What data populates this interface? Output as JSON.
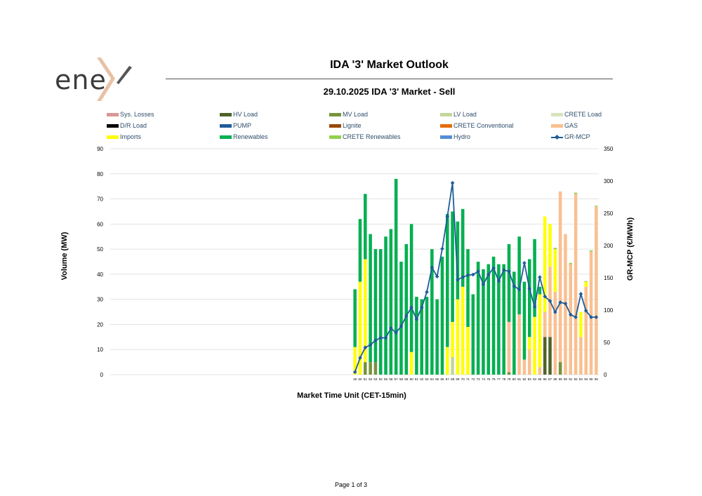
{
  "logo": {
    "text": "ene"
  },
  "title": "IDA '3' Market Outlook",
  "subtitle": "29.10.2025  IDA '3' Market - Sell",
  "page_footer": "Page 1 of 3",
  "legend": [
    {
      "label": "Sys. Losses",
      "color": "#d99694"
    },
    {
      "label": "HV Load",
      "color": "#4f6228"
    },
    {
      "label": "MV Load",
      "color": "#77933c"
    },
    {
      "label": "LV Load",
      "color": "#c3d69b"
    },
    {
      "label": "CRETE Load",
      "color": "#d7e4bd"
    },
    {
      "label": "D/R Load",
      "color": "#000000"
    },
    {
      "label": "PUMP",
      "color": "#1f5c99"
    },
    {
      "label": "Lignite",
      "color": "#984807"
    },
    {
      "label": "CRETE Conventional",
      "color": "#e46c0a"
    },
    {
      "label": "GAS",
      "color": "#fac090"
    },
    {
      "label": "Imports",
      "color": "#ffff00"
    },
    {
      "label": "Renewables",
      "color": "#00b050"
    },
    {
      "label": "CRETE Renewables",
      "color": "#92d050"
    },
    {
      "label": "Hydro",
      "color": "#558ed5"
    },
    {
      "label": "GR-MCP",
      "color": "#1f5c99"
    }
  ],
  "chart_data": {
    "type": "bar",
    "stacked": true,
    "xlabel": "Market Time Unit (CET-15min)",
    "ylabel": "Volume (MW)",
    "y2label": "GR-MCP (€/MWh)",
    "ylim": [
      0,
      90
    ],
    "y2lim": [
      0,
      350
    ],
    "yticks": [
      0,
      10,
      20,
      30,
      40,
      50,
      60,
      70,
      80,
      90
    ],
    "y2ticks": [
      0,
      50,
      100,
      150,
      200,
      250,
      300,
      350
    ],
    "categories": [
      "49",
      "50",
      "51",
      "52",
      "53",
      "54",
      "55",
      "56",
      "57",
      "58",
      "59",
      "60",
      "61",
      "62",
      "63",
      "64",
      "65",
      "66",
      "67",
      "68",
      "69",
      "70",
      "71",
      "72",
      "73",
      "74",
      "75",
      "76",
      "77",
      "78",
      "79",
      "80",
      "81",
      "82",
      "83",
      "84",
      "85",
      "86",
      "87",
      "88",
      "89",
      "90",
      "91",
      "92",
      "93",
      "94",
      "95",
      "96"
    ],
    "series": [
      {
        "name": "HV Load",
        "color": "#4f6228",
        "values": [
          0,
          0,
          0,
          0,
          0,
          0,
          0,
          0,
          0,
          0,
          0,
          0,
          0,
          0,
          0,
          0,
          0,
          0,
          0,
          0,
          0,
          0,
          0,
          0,
          0,
          0,
          0,
          0,
          0,
          0,
          0,
          0,
          0,
          0,
          0,
          0,
          0,
          15,
          15,
          0,
          0,
          0,
          0,
          0,
          0,
          0,
          0,
          0
        ]
      },
      {
        "name": "MV Load",
        "color": "#77933c",
        "values": [
          0,
          0,
          5,
          5,
          5,
          0,
          0,
          0,
          0,
          0,
          0,
          0,
          0,
          0,
          0,
          0,
          0,
          0,
          0,
          0,
          0,
          0,
          0,
          0,
          0,
          0,
          0,
          0,
          0,
          0,
          1,
          0,
          0,
          0,
          0,
          0,
          0,
          0,
          0,
          0,
          5,
          0,
          0,
          0,
          0,
          0,
          0,
          0
        ]
      },
      {
        "name": "LV Load",
        "color": "#c3d69b",
        "values": [
          0,
          0,
          0,
          0,
          0,
          0,
          0,
          0,
          0,
          0,
          0,
          0,
          0,
          0,
          0,
          0,
          0,
          0,
          0,
          7,
          0,
          0,
          0,
          0,
          0,
          0,
          0,
          0,
          0,
          0,
          0,
          0,
          0,
          0,
          0,
          0,
          0,
          0,
          0,
          0,
          0,
          0,
          0,
          0,
          0,
          0,
          0,
          0
        ]
      },
      {
        "name": "GAS",
        "color": "#fac090",
        "values": [
          0,
          0,
          0,
          0,
          0,
          0,
          0,
          0,
          0,
          0,
          0,
          0,
          0,
          0,
          0,
          0,
          0,
          0,
          0,
          0,
          0,
          0,
          0,
          0,
          0,
          0,
          0,
          0,
          0,
          0,
          20,
          0,
          24,
          6,
          10,
          0,
          3,
          10,
          28,
          33,
          68,
          56,
          44,
          72,
          15,
          35,
          49,
          67
        ]
      },
      {
        "name": "Imports",
        "color": "#ffff00",
        "values": [
          11,
          37,
          41,
          0,
          0,
          0,
          0,
          0,
          0,
          0,
          0,
          9,
          0,
          0,
          0,
          0,
          0,
          0,
          11,
          14,
          30,
          35,
          19,
          0,
          0,
          0,
          0,
          0,
          0,
          0,
          0,
          0,
          0,
          0,
          5,
          23,
          29,
          38,
          17,
          17,
          0,
          0,
          0,
          0,
          10,
          2,
          0,
          0
        ]
      },
      {
        "name": "Renewables",
        "color": "#00b050",
        "values": [
          23,
          25,
          26,
          51,
          45,
          50,
          55,
          58,
          78,
          45,
          52,
          51,
          31,
          30,
          31,
          50,
          30,
          47,
          53,
          44,
          31,
          31,
          31,
          32,
          45,
          42,
          44,
          47,
          44,
          44,
          31,
          41,
          31,
          31,
          31,
          31,
          3,
          0,
          0,
          0,
          0,
          0,
          0,
          0,
          0,
          0,
          0,
          0
        ]
      },
      {
        "name": "CRETE Renewables",
        "color": "#92d050",
        "values": [
          0,
          0,
          0,
          0,
          0,
          0,
          0,
          0,
          0,
          0,
          0,
          0,
          0,
          0,
          0,
          0,
          0,
          0,
          0,
          0,
          0,
          0,
          0,
          0,
          0,
          0,
          0,
          0,
          0,
          0,
          0,
          0,
          0,
          0,
          0,
          0,
          0,
          0,
          0,
          0.5,
          0,
          0,
          0.5,
          0.5,
          0,
          0.3,
          0.5,
          0.3
        ]
      }
    ],
    "line": {
      "name": "GR-MCP",
      "color": "#1f5c99",
      "axis": "right",
      "values": [
        4,
        26,
        42,
        46,
        53,
        57,
        57,
        72,
        65,
        75,
        91,
        104,
        86,
        104,
        128,
        166,
        152,
        195,
        245,
        297,
        147,
        151,
        154,
        155,
        160,
        140,
        155,
        165,
        145,
        162,
        160,
        137,
        132,
        173,
        133,
        105,
        151,
        121,
        114,
        97,
        112,
        110,
        93,
        89,
        125,
        99,
        89,
        89
      ]
    }
  }
}
